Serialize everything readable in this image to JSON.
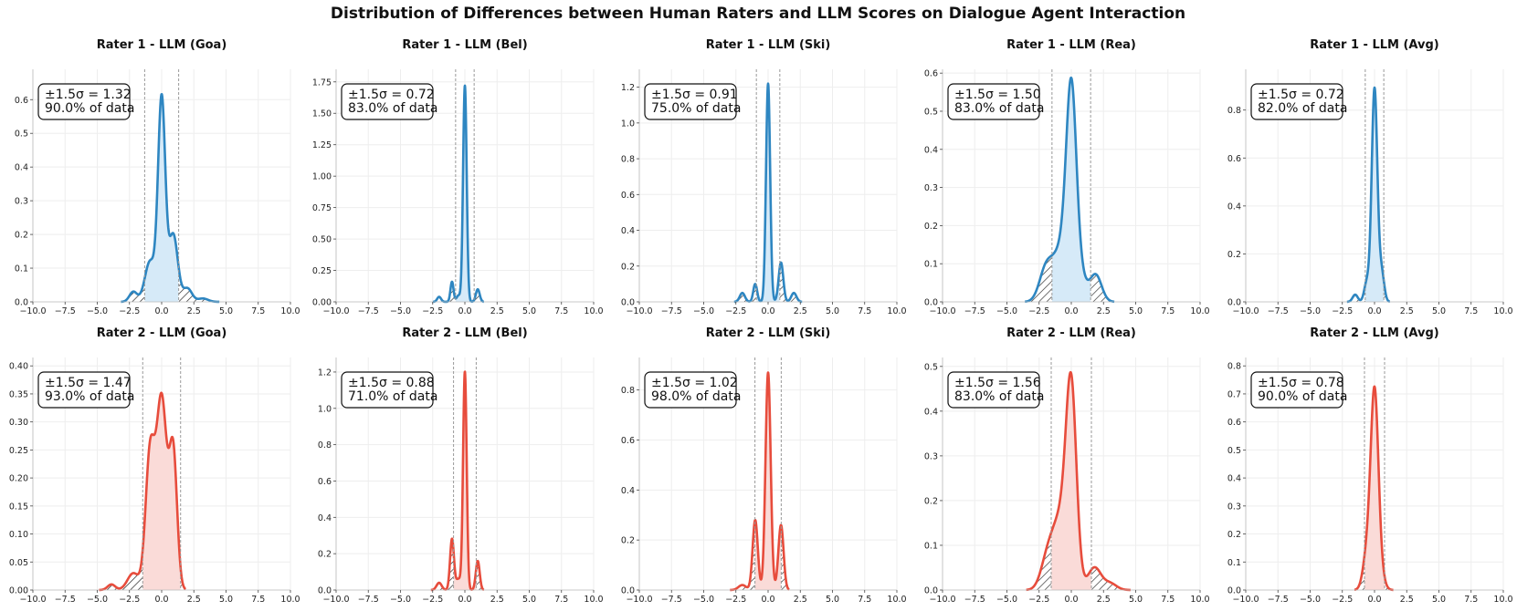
{
  "title": "Distribution of Differences between Human Raters and LLM Scores on Dialogue Agent Interaction",
  "colors": {
    "rater1": "#2e86c1",
    "rater1_fill": "#d6eaf8",
    "rater2": "#e74c3c",
    "rater2_fill": "#fadbd8",
    "bound": "#999999"
  },
  "chart_data": [
    {
      "type": "area",
      "title": "Rater 1 - LLM (Goa)",
      "rater": 1,
      "sigma_label": "±1.5σ = 1.32",
      "coverage_label": "90.0% of data",
      "sigma": 1.32,
      "xlim": [
        -10,
        10
      ],
      "ylim": [
        0,
        0.69
      ],
      "yticks": [
        0,
        0.1,
        0.2,
        0.3,
        0.4,
        0.5,
        0.6
      ],
      "ytick_labels": [
        "0.0",
        "0.1",
        "0.2",
        "0.3",
        "0.4",
        "0.5",
        "0.6"
      ],
      "xticks": [
        -10,
        -7.5,
        -5,
        -2.5,
        0,
        2.5,
        5,
        7.5,
        10
      ],
      "xtick_labels": [
        "−10.0",
        "−7.5",
        "−5.0",
        "−2.5",
        "0.0",
        "2.5",
        "5.0",
        "7.5",
        "10.0"
      ],
      "peaks": [
        [
          0,
          0.6,
          0.28
        ],
        [
          -0.9,
          0.12,
          0.4
        ],
        [
          0.9,
          0.2,
          0.35
        ],
        [
          -2.2,
          0.03,
          0.3
        ],
        [
          2.0,
          0.04,
          0.35
        ],
        [
          3.2,
          0.01,
          0.4
        ]
      ]
    },
    {
      "type": "area",
      "title": "Rater 1 - LLM (Bel)",
      "rater": 1,
      "sigma_label": "±1.5σ = 0.72",
      "coverage_label": "83.0% of data",
      "sigma": 0.72,
      "xlim": [
        -10,
        10
      ],
      "ylim": [
        0,
        1.85
      ],
      "yticks": [
        0,
        0.25,
        0.5,
        0.75,
        1,
        1.25,
        1.5,
        1.75
      ],
      "ytick_labels": [
        "0.00",
        "0.25",
        "0.50",
        "0.75",
        "1.00",
        "1.25",
        "1.50",
        "1.75"
      ],
      "xticks": [
        -10,
        -7.5,
        -5,
        -2.5,
        0,
        2.5,
        5,
        7.5,
        10
      ],
      "xtick_labels": [
        "−10.0",
        "−7.5",
        "−5.0",
        "−2.5",
        "0.0",
        "2.5",
        "5.0",
        "7.5",
        "10.0"
      ],
      "peaks": [
        [
          0,
          1.72,
          0.14
        ],
        [
          -1.0,
          0.16,
          0.12
        ],
        [
          -2.0,
          0.04,
          0.15
        ],
        [
          1.0,
          0.1,
          0.15
        ],
        [
          -0.5,
          0.05,
          0.15
        ]
      ]
    },
    {
      "type": "area",
      "title": "Rater 1 - LLM (Ski)",
      "rater": 1,
      "sigma_label": "±1.5σ = 0.91",
      "coverage_label": "75.0% of data",
      "sigma": 0.91,
      "xlim": [
        -10,
        10
      ],
      "ylim": [
        0,
        1.3
      ],
      "yticks": [
        0,
        0.2,
        0.4,
        0.6,
        0.8,
        1,
        1.2
      ],
      "ytick_labels": [
        "0.0",
        "0.2",
        "0.4",
        "0.6",
        "0.8",
        "1.0",
        "1.2"
      ],
      "xticks": [
        -10,
        -7.5,
        -5,
        -2.5,
        0,
        2.5,
        5,
        7.5,
        10
      ],
      "xtick_labels": [
        "−10.0",
        "−7.5",
        "−5.0",
        "−2.5",
        "0.0",
        "2.5",
        "5.0",
        "7.5",
        "10.0"
      ],
      "peaks": [
        [
          0,
          1.22,
          0.16
        ],
        [
          1.0,
          0.22,
          0.18
        ],
        [
          -1.0,
          0.1,
          0.15
        ],
        [
          -2.0,
          0.05,
          0.2
        ],
        [
          2.0,
          0.05,
          0.2
        ]
      ]
    },
    {
      "type": "area",
      "title": "Rater 1 - LLM (Rea)",
      "rater": 1,
      "sigma_label": "±1.5σ = 1.50",
      "coverage_label": "83.0% of data",
      "sigma": 1.5,
      "xlim": [
        -10,
        10
      ],
      "ylim": [
        0,
        0.61
      ],
      "yticks": [
        0,
        0.1,
        0.2,
        0.3,
        0.4,
        0.5,
        0.6
      ],
      "ytick_labels": [
        "0.0",
        "0.1",
        "0.2",
        "0.3",
        "0.4",
        "0.5",
        "0.6"
      ],
      "xticks": [
        -10,
        -7.5,
        -5,
        -2.5,
        0,
        2.5,
        5,
        7.5,
        10
      ],
      "xtick_labels": [
        "−10.0",
        "−7.5",
        "−5.0",
        "−2.5",
        "0.0",
        "2.5",
        "5.0",
        "7.5",
        "10.0"
      ],
      "peaks": [
        [
          0,
          0.45,
          0.38
        ],
        [
          -0.6,
          0.15,
          0.8
        ],
        [
          -2.0,
          0.07,
          0.5
        ],
        [
          1.9,
          0.07,
          0.45
        ],
        [
          0.6,
          0.05,
          0.5
        ]
      ]
    },
    {
      "type": "area",
      "title": "Rater 1 - LLM (Avg)",
      "rater": 1,
      "sigma_label": "±1.5σ = 0.72",
      "coverage_label": "82.0% of data",
      "sigma": 0.72,
      "xlim": [
        -10,
        10
      ],
      "ylim": [
        0,
        0.97
      ],
      "yticks": [
        0,
        0.2,
        0.4,
        0.6,
        0.8
      ],
      "ytick_labels": [
        "0.0",
        "0.2",
        "0.4",
        "0.6",
        "0.8"
      ],
      "xticks": [
        -10,
        -7.5,
        -5,
        -2.5,
        0,
        2.5,
        5,
        7.5,
        10
      ],
      "xtick_labels": [
        "−10.0",
        "−7.5",
        "−5.0",
        "−2.5",
        "0.0",
        "2.5",
        "5.0",
        "7.5",
        "10.0"
      ],
      "peaks": [
        [
          0,
          0.89,
          0.22
        ],
        [
          0.55,
          0.12,
          0.2
        ],
        [
          -0.6,
          0.08,
          0.2
        ],
        [
          -1.5,
          0.03,
          0.2
        ]
      ]
    },
    {
      "type": "area",
      "title": "Rater 2 - LLM (Goa)",
      "rater": 2,
      "sigma_label": "±1.5σ = 1.47",
      "coverage_label": "93.0% of data",
      "sigma": 1.47,
      "xlim": [
        -10,
        10
      ],
      "ylim": [
        0,
        0.415
      ],
      "yticks": [
        0,
        0.05,
        0.1,
        0.15,
        0.2,
        0.25,
        0.3,
        0.35,
        0.4
      ],
      "ytick_labels": [
        "0.00",
        "0.05",
        "0.10",
        "0.15",
        "0.20",
        "0.25",
        "0.30",
        "0.35",
        "0.40"
      ],
      "xticks": [
        -10,
        -7.5,
        -5,
        -2.5,
        0,
        2.5,
        5,
        7.5,
        10
      ],
      "xtick_labels": [
        "−10.0",
        "−7.5",
        "−5.0",
        "−2.5",
        "0.0",
        "2.5",
        "5.0",
        "7.5",
        "10.0"
      ],
      "peaks": [
        [
          0,
          0.34,
          0.4
        ],
        [
          -0.9,
          0.24,
          0.35
        ],
        [
          0.9,
          0.24,
          0.3
        ],
        [
          -2.2,
          0.03,
          0.45
        ],
        [
          -3.9,
          0.01,
          0.3
        ]
      ]
    },
    {
      "type": "area",
      "title": "Rater 2 - LLM (Bel)",
      "rater": 2,
      "sigma_label": "±1.5σ = 0.88",
      "coverage_label": "71.0% of data",
      "sigma": 0.88,
      "xlim": [
        -10,
        10
      ],
      "ylim": [
        0,
        1.28
      ],
      "yticks": [
        0,
        0.2,
        0.4,
        0.6,
        0.8,
        1,
        1.2
      ],
      "ytick_labels": [
        "0.0",
        "0.2",
        "0.4",
        "0.6",
        "0.8",
        "1.0",
        "1.2"
      ],
      "xticks": [
        -10,
        -7.5,
        -5,
        -2.5,
        0,
        2.5,
        5,
        7.5,
        10
      ],
      "xtick_labels": [
        "−10.0",
        "−7.5",
        "−5.0",
        "−2.5",
        "0.0",
        "2.5",
        "5.0",
        "7.5",
        "10.0"
      ],
      "peaks": [
        [
          0,
          1.2,
          0.14
        ],
        [
          -1.0,
          0.28,
          0.15
        ],
        [
          1.0,
          0.16,
          0.15
        ],
        [
          -2.0,
          0.04,
          0.2
        ],
        [
          -0.5,
          0.06,
          0.2
        ]
      ]
    },
    {
      "type": "area",
      "title": "Rater 2 - LLM (Ski)",
      "rater": 2,
      "sigma_label": "±1.5σ = 1.02",
      "coverage_label": "98.0% of data",
      "sigma": 1.02,
      "xlim": [
        -10,
        10
      ],
      "ylim": [
        0,
        0.93
      ],
      "yticks": [
        0,
        0.2,
        0.4,
        0.6,
        0.8
      ],
      "ytick_labels": [
        "0.0",
        "0.2",
        "0.4",
        "0.6",
        "0.8"
      ],
      "xticks": [
        -10,
        -7.5,
        -5,
        -2.5,
        0,
        2.5,
        5,
        7.5,
        10
      ],
      "xtick_labels": [
        "−10.0",
        "−7.5",
        "−5.0",
        "−2.5",
        "0.0",
        "2.5",
        "5.0",
        "7.5",
        "10.0"
      ],
      "peaks": [
        [
          0,
          0.87,
          0.2
        ],
        [
          -1.0,
          0.28,
          0.2
        ],
        [
          1.0,
          0.26,
          0.2
        ],
        [
          -2.0,
          0.02,
          0.3
        ]
      ]
    },
    {
      "type": "area",
      "title": "Rater 2 - LLM (Rea)",
      "rater": 2,
      "sigma_label": "±1.5σ = 1.56",
      "coverage_label": "83.0% of data",
      "sigma": 1.56,
      "xlim": [
        -10,
        10
      ],
      "ylim": [
        0,
        0.52
      ],
      "yticks": [
        0,
        0.1,
        0.2,
        0.3,
        0.4,
        0.5
      ],
      "ytick_labels": [
        "0.0",
        "0.1",
        "0.2",
        "0.3",
        "0.4",
        "0.5"
      ],
      "xticks": [
        -10,
        -7.5,
        -5,
        -2.5,
        0,
        2.5,
        5,
        7.5,
        10
      ],
      "xtick_labels": [
        "−10.0",
        "−7.5",
        "−5.0",
        "−2.5",
        "0.0",
        "2.5",
        "5.0",
        "7.5",
        "10.0"
      ],
      "peaks": [
        [
          0,
          0.4,
          0.4
        ],
        [
          -0.8,
          0.16,
          0.7
        ],
        [
          -1.9,
          0.05,
          0.5
        ],
        [
          1.8,
          0.05,
          0.5
        ],
        [
          3.0,
          0.015,
          0.5
        ]
      ]
    },
    {
      "type": "area",
      "title": "Rater 2 - LLM (Avg)",
      "rater": 2,
      "sigma_label": "±1.5σ = 0.78",
      "coverage_label": "90.0% of data",
      "sigma": 0.78,
      "xlim": [
        -10,
        10
      ],
      "ylim": [
        0,
        0.83
      ],
      "yticks": [
        0,
        0.1,
        0.2,
        0.3,
        0.4,
        0.5,
        0.6,
        0.7,
        0.8
      ],
      "ytick_labels": [
        "0.0",
        "0.1",
        "0.2",
        "0.3",
        "0.4",
        "0.5",
        "0.6",
        "0.7",
        "0.8"
      ],
      "xticks": [
        -10,
        -7.5,
        -5,
        -2.5,
        0,
        2.5,
        5,
        7.5,
        10
      ],
      "xtick_labels": [
        "−10.0",
        "−7.5",
        "−5.0",
        "−2.5",
        "0.0",
        "2.5",
        "5.0",
        "7.5",
        "10.0"
      ],
      "peaks": [
        [
          0,
          0.7,
          0.3
        ],
        [
          -0.6,
          0.12,
          0.3
        ],
        [
          0.5,
          0.04,
          0.3
        ]
      ]
    }
  ]
}
